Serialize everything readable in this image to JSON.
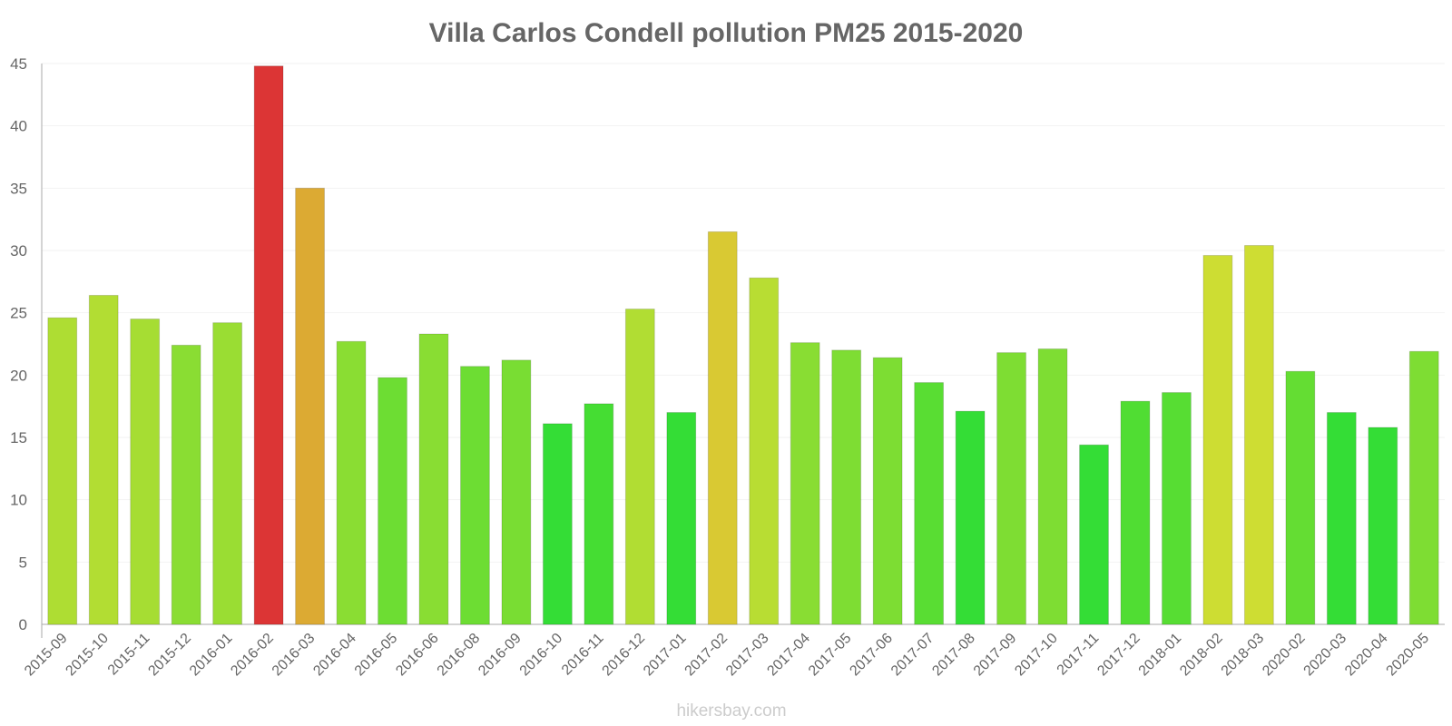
{
  "chart_data": {
    "type": "bar",
    "title": "Villa Carlos Condell pollution PM25 2015-2020",
    "xlabel": "",
    "ylabel": "",
    "ylim": [
      0,
      45
    ],
    "yticks": [
      0,
      5,
      10,
      15,
      20,
      25,
      30,
      35,
      40,
      45
    ],
    "grid": true,
    "legend": "none",
    "categories": [
      "2015-09",
      "2015-10",
      "2015-11",
      "2015-12",
      "2016-01",
      "2016-02",
      "2016-03",
      "2016-04",
      "2016-05",
      "2016-06",
      "2016-08",
      "2016-09",
      "2016-10",
      "2016-11",
      "2016-12",
      "2017-01",
      "2017-02",
      "2017-03",
      "2017-04",
      "2017-05",
      "2017-06",
      "2017-07",
      "2017-08",
      "2017-09",
      "2017-10",
      "2017-11",
      "2017-12",
      "2018-01",
      "2018-02",
      "2018-03",
      "2020-02",
      "2020-03",
      "2020-04",
      "2020-05"
    ],
    "values": [
      24.6,
      26.4,
      24.5,
      22.4,
      24.2,
      44.8,
      35.0,
      22.7,
      19.8,
      23.3,
      20.7,
      21.2,
      16.1,
      17.7,
      25.3,
      17.0,
      31.5,
      27.8,
      22.6,
      22.0,
      21.4,
      19.4,
      17.1,
      21.8,
      22.1,
      14.4,
      17.9,
      18.6,
      29.6,
      30.4,
      20.3,
      17.0,
      15.8,
      21.9
    ],
    "colors": [
      "#aedd33",
      "#b2dd33",
      "#a6dd33",
      "#8add33",
      "#9add33",
      "#dc3535",
      "#dcaa33",
      "#8add33",
      "#6ddd33",
      "#89dd33",
      "#6ddd33",
      "#79dd33",
      "#34dd36",
      "#45dd33",
      "#b1dd33",
      "#34dd36",
      "#d9c933",
      "#b8dd33",
      "#89dd33",
      "#7edd33",
      "#7ddd33",
      "#59dd33",
      "#34dd36",
      "#7edd33",
      "#7edd33",
      "#34dd36",
      "#50dd33",
      "#57dd33",
      "#cddd33",
      "#cedd33",
      "#64dd33",
      "#34dd36",
      "#34dd36",
      "#7edd33"
    ],
    "source": "hikersbay.com"
  }
}
